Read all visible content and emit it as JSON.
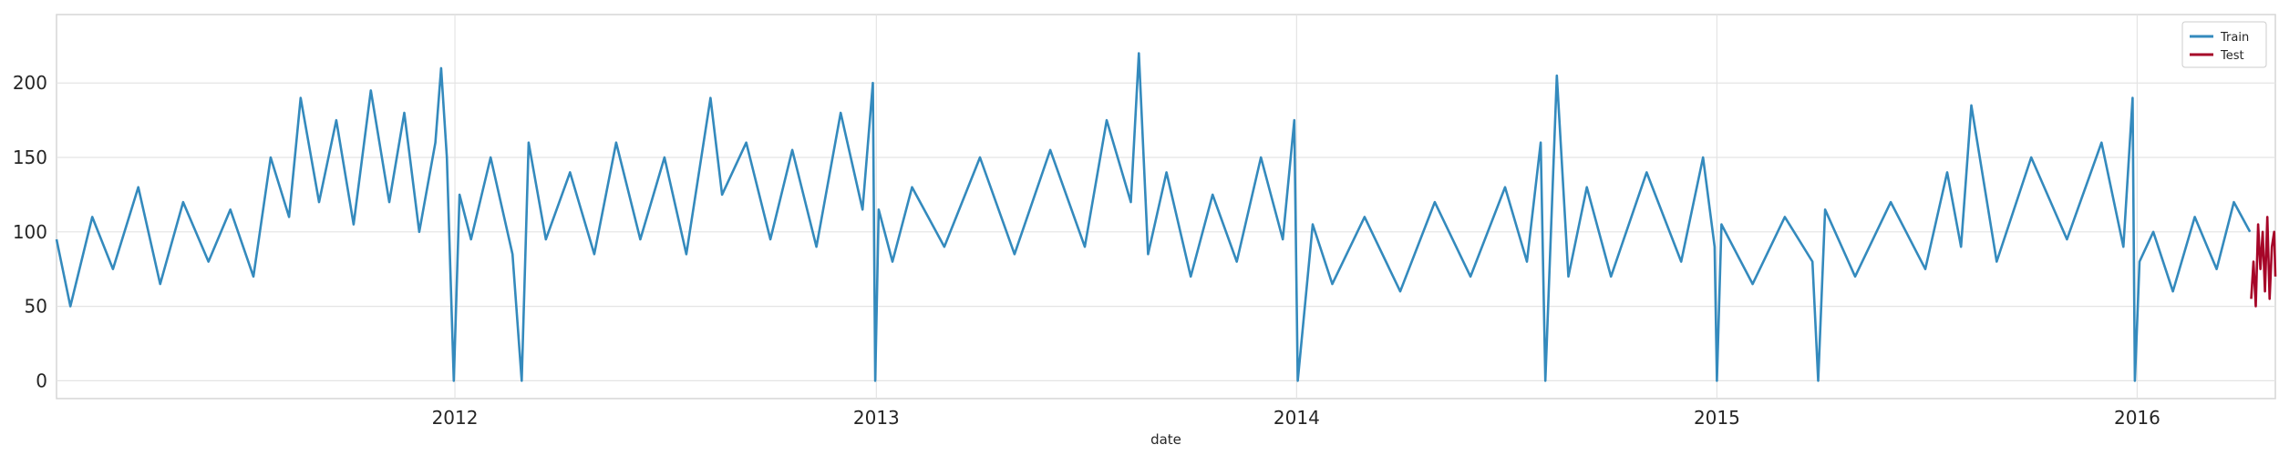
{
  "chart_data": {
    "type": "line",
    "title": "",
    "xlabel": "date",
    "ylabel": "",
    "x_axis": {
      "type": "date",
      "range": [
        "2011-01-20",
        "2016-04-30"
      ],
      "ticks": [
        "2012-01-01",
        "2013-01-01",
        "2014-01-01",
        "2015-01-01",
        "2016-01-01"
      ],
      "tick_labels": [
        "2012",
        "2013",
        "2014",
        "2015",
        "2016"
      ]
    },
    "y_axis": {
      "range": [
        -12,
        246
      ],
      "ticks": [
        0,
        50,
        100,
        150,
        200
      ],
      "tick_labels": [
        "0",
        "50",
        "100",
        "150",
        "200"
      ]
    },
    "grid": true,
    "legend": {
      "placement": "top-right"
    },
    "series": [
      {
        "name": "Train",
        "color": "#348abd",
        "x": [
          "2011-01-20",
          "2011-02-01",
          "2011-02-20",
          "2011-03-10",
          "2011-04-01",
          "2011-04-20",
          "2011-05-10",
          "2011-06-01",
          "2011-06-20",
          "2011-07-10",
          "2011-07-25",
          "2011-08-10",
          "2011-08-20",
          "2011-09-05",
          "2011-09-20",
          "2011-10-05",
          "2011-10-20",
          "2011-11-05",
          "2011-11-18",
          "2011-12-01",
          "2011-12-15",
          "2011-12-20",
          "2011-12-25",
          "2011-12-31",
          "2012-01-05",
          "2012-01-15",
          "2012-02-01",
          "2012-02-20",
          "2012-02-28",
          "2012-03-05",
          "2012-03-20",
          "2012-04-10",
          "2012-05-01",
          "2012-05-20",
          "2012-06-10",
          "2012-07-01",
          "2012-07-20",
          "2012-08-10",
          "2012-08-20",
          "2012-09-10",
          "2012-10-01",
          "2012-10-20",
          "2012-11-10",
          "2012-12-01",
          "2012-12-20",
          "2012-12-29",
          "2012-12-31",
          "2013-01-03",
          "2013-01-15",
          "2013-02-01",
          "2013-03-01",
          "2013-04-01",
          "2013-05-01",
          "2013-06-01",
          "2013-07-01",
          "2013-07-20",
          "2013-08-10",
          "2013-08-17",
          "2013-08-25",
          "2013-09-10",
          "2013-10-01",
          "2013-10-20",
          "2013-11-10",
          "2013-12-01",
          "2013-12-20",
          "2013-12-30",
          "2014-01-02",
          "2014-01-15",
          "2014-02-01",
          "2014-03-01",
          "2014-04-01",
          "2014-05-01",
          "2014-06-01",
          "2014-07-01",
          "2014-07-20",
          "2014-08-01",
          "2014-08-05",
          "2014-08-15",
          "2014-08-25",
          "2014-09-10",
          "2014-10-01",
          "2014-11-01",
          "2014-12-01",
          "2014-12-20",
          "2014-12-30",
          "2015-01-01",
          "2015-01-05",
          "2015-02-01",
          "2015-03-01",
          "2015-03-25",
          "2015-03-30",
          "2015-04-05",
          "2015-05-01",
          "2015-06-01",
          "2015-07-01",
          "2015-07-20",
          "2015-08-01",
          "2015-08-10",
          "2015-09-01",
          "2015-10-01",
          "2015-11-01",
          "2015-12-01",
          "2015-12-20",
          "2015-12-28",
          "2015-12-30",
          "2016-01-03",
          "2016-01-15",
          "2016-02-01",
          "2016-02-20",
          "2016-03-10",
          "2016-03-25",
          "2016-04-08"
        ],
        "y": [
          95,
          50,
          110,
          75,
          130,
          65,
          120,
          80,
          115,
          70,
          150,
          110,
          190,
          120,
          175,
          105,
          195,
          120,
          180,
          100,
          160,
          210,
          150,
          0,
          125,
          95,
          150,
          85,
          0,
          160,
          95,
          140,
          85,
          160,
          95,
          150,
          85,
          190,
          125,
          160,
          95,
          155,
          90,
          180,
          115,
          200,
          0,
          115,
          80,
          130,
          90,
          150,
          85,
          155,
          90,
          175,
          120,
          220,
          85,
          140,
          70,
          125,
          80,
          150,
          95,
          175,
          0,
          105,
          65,
          110,
          60,
          120,
          70,
          130,
          80,
          160,
          0,
          205,
          70,
          130,
          70,
          140,
          80,
          150,
          90,
          0,
          105,
          65,
          110,
          80,
          0,
          115,
          70,
          120,
          75,
          140,
          90,
          185,
          80,
          150,
          95,
          160,
          90,
          190,
          0,
          80,
          100,
          60,
          110,
          75,
          120,
          100
        ]
      },
      {
        "name": "Test",
        "color": "#a60628",
        "x": [
          "2016-04-09",
          "2016-04-11",
          "2016-04-13",
          "2016-04-15",
          "2016-04-17",
          "2016-04-19",
          "2016-04-21",
          "2016-04-23",
          "2016-04-25",
          "2016-04-27",
          "2016-04-29",
          "2016-04-30"
        ],
        "y": [
          55,
          80,
          50,
          105,
          75,
          100,
          60,
          110,
          55,
          90,
          100,
          70
        ]
      }
    ]
  }
}
